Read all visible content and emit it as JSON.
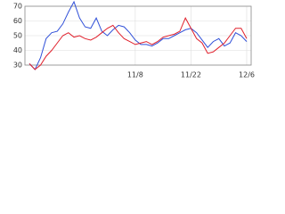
{
  "chart_data": {
    "type": "line",
    "categories": [
      null,
      null,
      null,
      null,
      null,
      null,
      null,
      null,
      null,
      null,
      null,
      null,
      null,
      null,
      null,
      null,
      null,
      null,
      null,
      "11/8",
      null,
      null,
      null,
      null,
      null,
      null,
      null,
      null,
      null,
      "11/22",
      null,
      null,
      null,
      null,
      null,
      null,
      null,
      null,
      null,
      "12/6"
    ],
    "series": [
      {
        "color": "#3050d8",
        "values": [
          31,
          27,
          35,
          48,
          52,
          53,
          58,
          66,
          73,
          62,
          56,
          55,
          62,
          53,
          50,
          54,
          57,
          56,
          52,
          47,
          44,
          44,
          43,
          45,
          48,
          48,
          50,
          52,
          54,
          55,
          52,
          47,
          42,
          46,
          48,
          43,
          45,
          52,
          50,
          46
        ]
      },
      {
        "color": "#e0202c",
        "values": [
          31,
          27,
          30,
          36,
          40,
          45,
          50,
          52,
          49,
          50,
          48,
          47,
          49,
          52,
          55,
          57,
          52,
          48,
          46,
          44,
          45,
          46,
          44,
          46,
          49,
          50,
          51,
          53,
          62,
          55,
          48,
          45,
          38,
          39,
          42,
          45,
          50,
          55,
          55,
          48
        ]
      }
    ],
    "ylim": [
      30,
      70
    ],
    "yticks": [
      30,
      40,
      50,
      60,
      70
    ],
    "grid": true
  }
}
